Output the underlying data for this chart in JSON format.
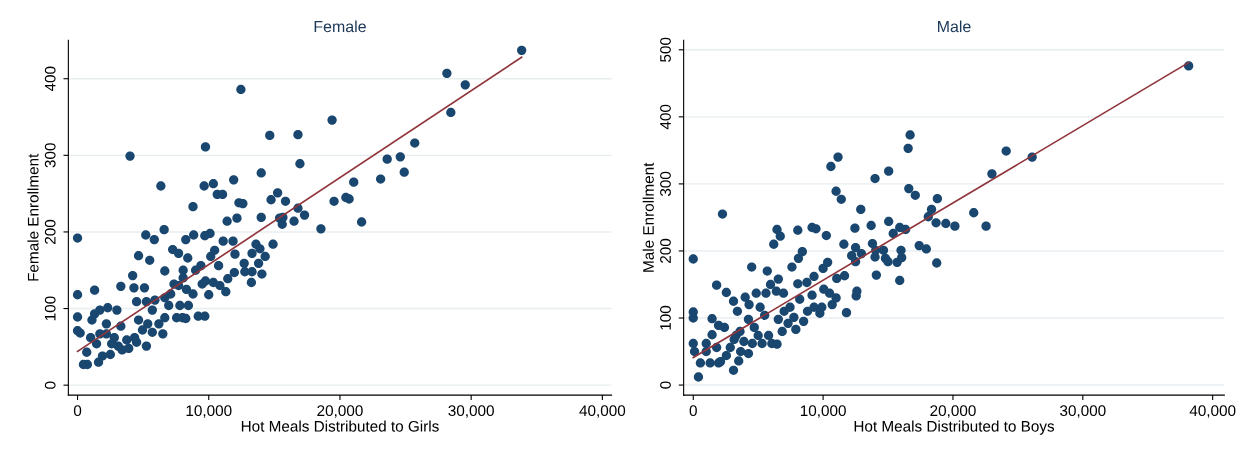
{
  "chart_data": [
    {
      "type": "scatter",
      "title": "Female",
      "xlabel": "Hot Meals Distributed to Girls",
      "ylabel": "Female Enrollment",
      "xlim": [
        -700,
        40700
      ],
      "ylim": [
        -13,
        450
      ],
      "xticks": [
        {
          "value": 0,
          "label": "0"
        },
        {
          "value": 10000,
          "label": "10,000"
        },
        {
          "value": 20000,
          "label": "20,000"
        },
        {
          "value": 30000,
          "label": "30,000"
        },
        {
          "value": 40000,
          "label": "40,000"
        }
      ],
      "yticks": [
        0,
        100,
        200,
        300,
        400
      ],
      "grid": "y",
      "series": [
        {
          "marker": "circle",
          "color": "#1a476f",
          "x": [
            0,
            0,
            0,
            0,
            200,
            1300,
            1100,
            1300,
            1700,
            2300,
            3000,
            3300,
            4000,
            4200,
            4650,
            5200,
            5500,
            5850,
            6350,
            6600,
            6650,
            7250,
            7700,
            8800,
            8850,
            8250,
            8400,
            8050,
            9750,
            9650,
            10350,
            10650,
            11050,
            10100,
            9700,
            10450,
            10150,
            10750,
            9400,
            9000,
            9500,
            10000,
            9750,
            10350,
            10850,
            11300,
            11450,
            11100,
            11400,
            11900,
            12450,
            12150,
            11850,
            12000,
            11950,
            12300,
            12600,
            12700,
            12750,
            13300,
            13250,
            13300,
            13600,
            13900,
            14300,
            13800,
            14050,
            14000,
            14000,
            14650,
            14750,
            14900,
            15250,
            15400,
            15600,
            15850,
            15650,
            16500,
            16800,
            16800,
            16950,
            17300,
            18550,
            19400,
            19550,
            20450,
            20700,
            21050,
            21650,
            23100,
            23600,
            24600,
            24900,
            25700,
            28150,
            28450,
            29550,
            33850,
            450,
            750,
            700,
            1000,
            1450,
            1600,
            1900,
            2200,
            2500,
            2800,
            3100,
            3400,
            3750,
            3900,
            4350,
            4500,
            4650,
            4950,
            5250,
            5350,
            5700,
            5900,
            5100,
            6200,
            6500,
            6650,
            6950,
            7100,
            7550,
            7800,
            8000,
            8250,
            8450,
            8300,
            8800,
            9200,
            9700,
            7350,
            7700,
            8050,
            6650,
            5700,
            5250,
            4500,
            4300,
            2200,
            1700,
            3300,
            2600
          ],
          "values": [
            192,
            118,
            89,
            71,
            68,
            124,
            85,
            93,
            98,
            101,
            98,
            129,
            299,
            143,
            169,
            196,
            163,
            190,
            260,
            203,
            149,
            177,
            172,
            233,
            196,
            190,
            166,
            150,
            311,
            260,
            263,
            249,
            249,
            198,
            195,
            176,
            168,
            156,
            156,
            150,
            132,
            118,
            136,
            134,
            130,
            122,
            139,
            188,
            214,
            268,
            386,
            218,
            188,
            171,
            147,
            238,
            237,
            159,
            148,
            148,
            134,
            172,
            184,
            178,
            168,
            159,
            145,
            277,
            219,
            326,
            242,
            184,
            251,
            218,
            210,
            240,
            219,
            214,
            231,
            327,
            289,
            222,
            204,
            346,
            240,
            245,
            243,
            265,
            213,
            269,
            295,
            298,
            278,
            316,
            407,
            356,
            392,
            437,
            27,
            27,
            43,
            62,
            54,
            30,
            38,
            80,
            40,
            62,
            51,
            46,
            59,
            48,
            62,
            56,
            85,
            72,
            51,
            80,
            98,
            111,
            127,
            80,
            67,
            88,
            104,
            119,
            88,
            104,
            88,
            87,
            104,
            125,
            119,
            90,
            90,
            132,
            130,
            140,
            114,
            69,
            109,
            109,
            127,
            67,
            67,
            77,
            54
          ]
        },
        {
          "type": "line",
          "marker": "none",
          "color": "#90353b",
          "x": [
            0,
            33850
          ],
          "values": [
            44,
            428
          ]
        }
      ]
    },
    {
      "type": "scatter",
      "title": "Male",
      "xlabel": "Hot Meals Distributed to Boys",
      "ylabel": "Male Enrollment",
      "xlim": [
        -740,
        40900
      ],
      "ylim": [
        -15,
        514
      ],
      "xticks": [
        {
          "value": 0,
          "label": "0"
        },
        {
          "value": 10000,
          "label": "10,000"
        },
        {
          "value": 20000,
          "label": "20,000"
        },
        {
          "value": 30000,
          "label": "30,000"
        },
        {
          "value": 40000,
          "label": "40,000"
        }
      ],
      "yticks": [
        0,
        100,
        200,
        300,
        400,
        500
      ],
      "grid": "y",
      "series": [
        {
          "marker": "circle",
          "color": "#1a476f",
          "x": [
            0,
            0,
            0,
            0,
            100,
            400,
            550,
            1000,
            1300,
            1450,
            1800,
            1450,
            1950,
            2250,
            2550,
            2400,
            1950,
            3100,
            3100,
            3500,
            3400,
            4000,
            4300,
            4500,
            4850,
            5700,
            5600,
            5950,
            6200,
            6450,
            6700,
            6550,
            6950,
            7600,
            8050,
            8100,
            8400,
            8050,
            8750,
            9150,
            9450,
            9300,
            10000,
            10250,
            10350,
            10600,
            11150,
            11000,
            11400,
            11050,
            10700,
            11000,
            10500,
            10050,
            11600,
            11650,
            11800,
            12200,
            12450,
            12500,
            12500,
            12550,
            12600,
            12900,
            12950,
            13700,
            13800,
            14000,
            14000,
            14050,
            14100,
            14650,
            14800,
            15000,
            15050,
            15050,
            15400,
            15700,
            15900,
            15900,
            16000,
            16050,
            16350,
            16550,
            16700,
            16600,
            17100,
            17400,
            17950,
            18100,
            18350,
            18700,
            18800,
            18750,
            19450,
            20150,
            21600,
            22550,
            23000,
            24100,
            26100,
            38150,
            1000,
            1800,
            2100,
            2550,
            2850,
            3300,
            3650,
            3900,
            4250,
            4550,
            4700,
            5000,
            5300,
            5500,
            5800,
            6050,
            6450,
            6550,
            6850,
            7000,
            7300,
            7450,
            7750,
            7900,
            8200,
            8500,
            8800,
            9300,
            9750,
            9900,
            9150,
            6400,
            5150,
            4250,
            3600,
            3150
          ],
          "values": [
            188,
            109,
            100,
            62,
            50,
            12,
            33,
            50,
            33,
            99,
            149,
            75,
            89,
            255,
            138,
            86,
            33,
            22,
            125,
            36,
            110,
            131,
            120,
            176,
            137,
            170,
            137,
            150,
            210,
            232,
            222,
            158,
            137,
            176,
            231,
            189,
            199,
            151,
            153,
            235,
            233,
            162,
            174,
            223,
            183,
            326,
            340,
            289,
            277,
            159,
            120,
            130,
            137,
            143,
            210,
            163,
            108,
            193,
            234,
            184,
            205,
            133,
            140,
            262,
            196,
            238,
            211,
            191,
            308,
            201,
            164,
            201,
            189,
            184,
            319,
            244,
            226,
            183,
            235,
            156,
            201,
            190,
            232,
            353,
            373,
            293,
            283,
            208,
            203,
            251,
            262,
            242,
            278,
            182,
            241,
            237,
            257,
            237,
            315,
            349,
            340,
            476,
            62,
            56,
            35,
            44,
            56,
            74,
            50,
            65,
            47,
            62,
            86,
            74,
            62,
            104,
            74,
            62,
            61,
            98,
            80,
            110,
            92,
            116,
            101,
            83,
            128,
            95,
            110,
            116,
            107,
            116,
            134,
            140,
            116,
            98,
            80,
            68
          ]
        },
        {
          "type": "line",
          "marker": "none",
          "color": "#90353b",
          "x": [
            0,
            38150
          ],
          "values": [
            41,
            481
          ]
        }
      ]
    }
  ]
}
